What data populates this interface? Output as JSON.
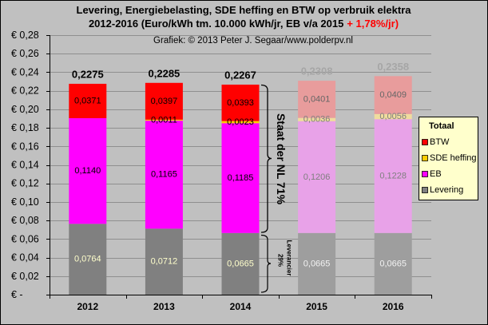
{
  "chart_data": {
    "type": "bar",
    "stacked": true,
    "title": {
      "line1": "Levering, Energiebelasting, SDE heffing en BTW op verbruik elektra",
      "line2": "2012-2016 (Euro/kWh tm. 10.000 kWh/jr, EB v/a 2015",
      "line2_highlight": "+ 1,78%/jr)"
    },
    "subtitle": "Grafiek: © 2013 Peter J. Segaar/www.polderpv.nl",
    "categories": [
      "2012",
      "2013",
      "2014",
      "2015",
      "2016"
    ],
    "faded": [
      false,
      false,
      false,
      true,
      true
    ],
    "series": [
      {
        "name": "Levering",
        "values": [
          0.0764,
          0.0712,
          0.0665,
          0.0665,
          0.0665
        ],
        "labels": [
          "0,0764",
          "0,0712",
          "0,0665",
          "0,0665",
          "0,0665"
        ],
        "color": "#808080",
        "faded_color": "#9E9E9E",
        "label_color": "#FFFFCC",
        "faded_label_color": "#F2F2F2"
      },
      {
        "name": "EB",
        "values": [
          0.114,
          0.1165,
          0.1185,
          0.1206,
          0.1228
        ],
        "labels": [
          "0,1140",
          "0,1165",
          "0,1185",
          "0,1206",
          "0,1228"
        ],
        "color": "#FF00FF",
        "faded_color": "#E8A2E8",
        "label_color": "#000000",
        "faded_label_color": "#7F7F7F"
      },
      {
        "name": "SDE heffing",
        "values": [
          null,
          0.0011,
          0.0023,
          0.0036,
          0.0056
        ],
        "labels": [
          null,
          "0,0011",
          "0,0023",
          "0,0036",
          "0,0056"
        ],
        "color": "#FFCC00",
        "faded_color": "#F0DC9E",
        "label_color": "#000000",
        "faded_label_color": "#7F7F7F"
      },
      {
        "name": "BTW",
        "values": [
          0.0371,
          0.0397,
          0.0393,
          0.0401,
          0.0409
        ],
        "labels": [
          "0,0371",
          "0,0397",
          "0,0393",
          "0,0401",
          "0,0409"
        ],
        "color": "#FF0000",
        "faded_color": "#E89C9C",
        "label_color": "#000000",
        "faded_label_color": "#666666"
      }
    ],
    "totals": [
      0.2275,
      0.2285,
      0.2267,
      0.2308,
      0.2358
    ],
    "total_labels": [
      "0,2275",
      "0,2285",
      "0,2267",
      "0,2308",
      "0,2358"
    ],
    "total_color": "#000000",
    "faded_total_color": "#A6A6A6",
    "ylim": [
      0,
      0.28
    ],
    "yticks": [
      0,
      0.02,
      0.04,
      0.06,
      0.08,
      0.1,
      0.12,
      0.14,
      0.16,
      0.18,
      0.2,
      0.22,
      0.24,
      0.26,
      0.28
    ],
    "ytick_labels": [
      "€ -",
      "€ 0,02",
      "€ 0,04",
      "€ 0,06",
      "€ 0,08",
      "€ 0,10",
      "€ 0,12",
      "€ 0,14",
      "€ 0,16",
      "€ 0,18",
      "€ 0,20",
      "€ 0,22",
      "€ 0,24",
      "€ 0,26",
      "€ 0,28"
    ],
    "grid": true,
    "legend": {
      "title": "Totaal",
      "placement": "right",
      "background": "#FFFFCC"
    },
    "annotations": [
      {
        "text": "Staat der NL 71%"
      },
      {
        "lines": [
          "Leverancier",
          "29%"
        ]
      }
    ]
  },
  "colors": {
    "chart_background": "#C0C0C0",
    "title_highlight": "#FF0000",
    "gridline": "#8F8F8F"
  }
}
